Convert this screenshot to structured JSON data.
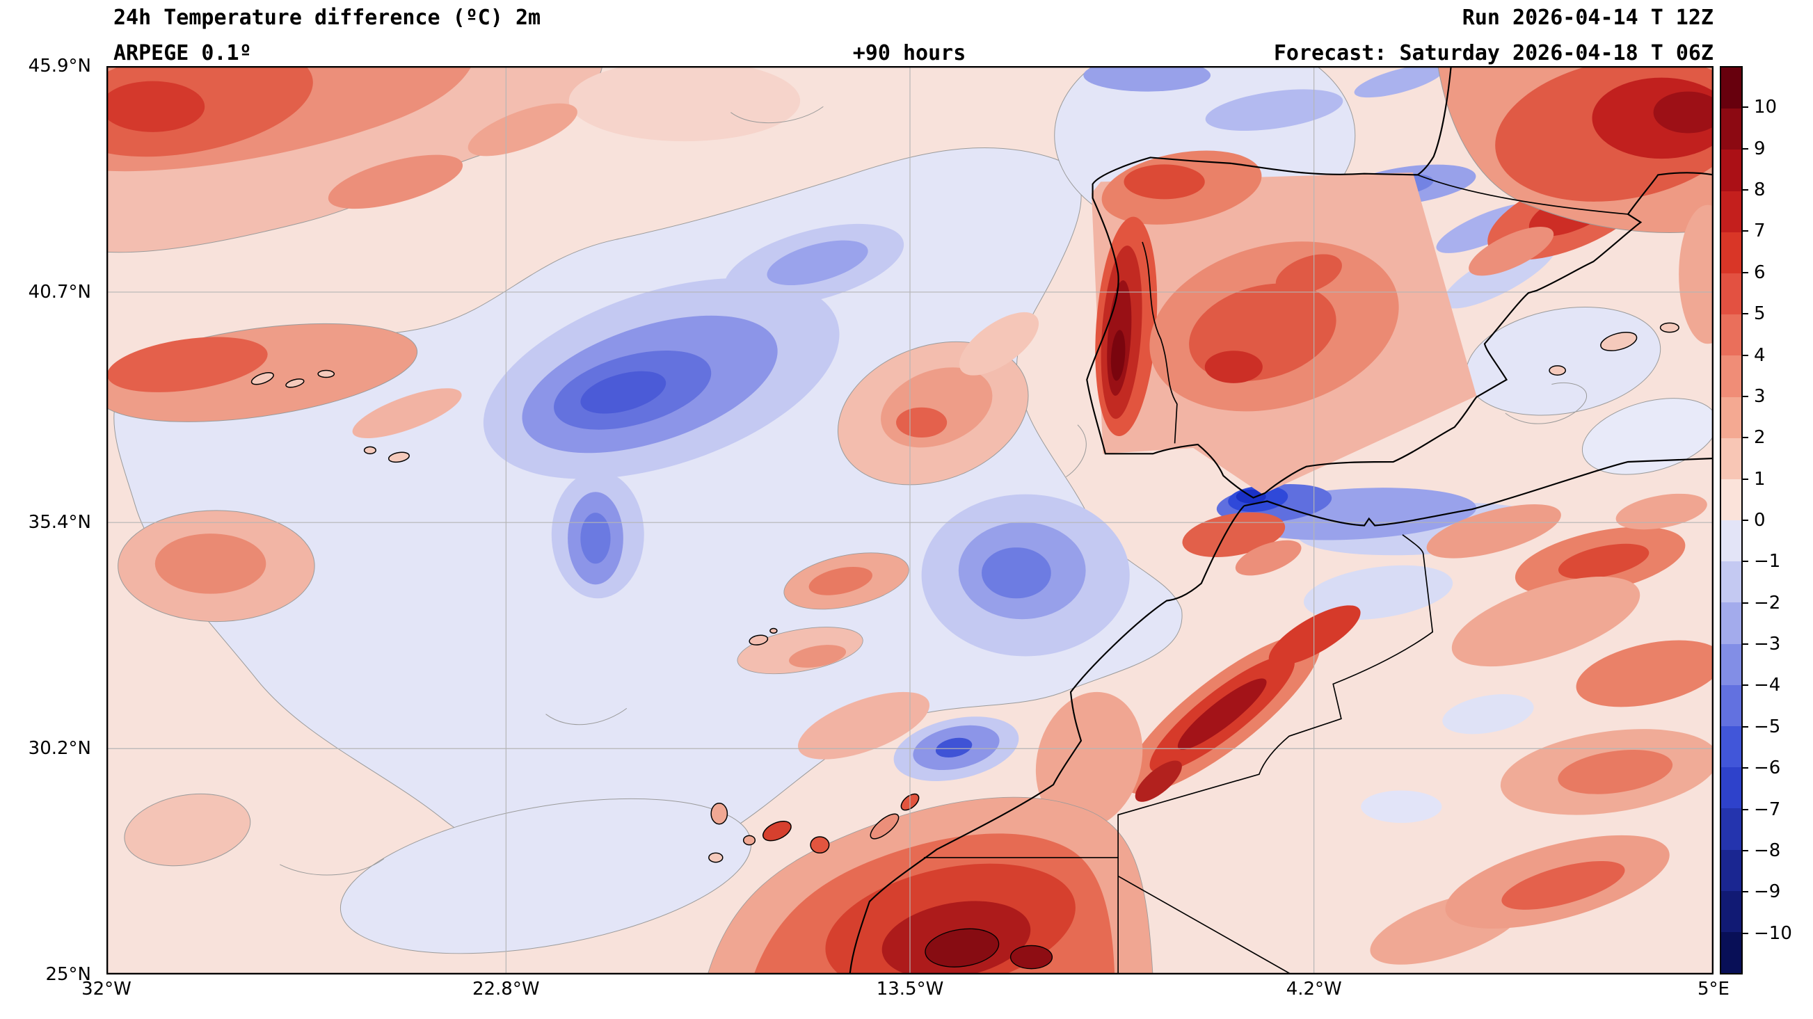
{
  "header": {
    "title": "24h Temperature difference (ºC) 2m",
    "model": "ARPEGE 0.1º",
    "lead_time": "+90 hours",
    "run": "Run 2026-04-14 T 12Z",
    "forecast": "Forecast: Saturday 2026-04-18 T 06Z"
  },
  "axes": {
    "y_ticks": [
      {
        "label": "45.9°N",
        "pos": 0
      },
      {
        "label": "40.7°N",
        "pos": 24.88
      },
      {
        "label": "35.4°N",
        "pos": 50.24
      },
      {
        "label": "30.2°N",
        "pos": 75.12
      },
      {
        "label": "25°N",
        "pos": 100
      }
    ],
    "x_ticks": [
      {
        "label": "32°W",
        "pos": 0
      },
      {
        "label": "22.8°W",
        "pos": 24.86
      },
      {
        "label": "13.5°W",
        "pos": 50.0
      },
      {
        "label": "4.2°W",
        "pos": 75.14
      },
      {
        "label": "5°E",
        "pos": 100
      }
    ]
  },
  "colorbar": {
    "tick_labels": [
      "10",
      "9",
      "8",
      "7",
      "6",
      "5",
      "4",
      "3",
      "2",
      "1",
      "0",
      "−1",
      "−2",
      "−3",
      "−4",
      "−5",
      "−6",
      "−7",
      "−8",
      "−9",
      "−10"
    ],
    "segment_colors_top_to_bottom": [
      "#67000d",
      "#8c0912",
      "#ab1016",
      "#c41f1d",
      "#d93627",
      "#e35141",
      "#ea6f5b",
      "#f08d77",
      "#f4a992",
      "#f8c6b5",
      "#fbe3da",
      "#e3e4f7",
      "#c4c9f2",
      "#a3abec",
      "#828ee6",
      "#6271e0",
      "#4156d9",
      "#2e42cb",
      "#2434ae",
      "#1a2691",
      "#111a74",
      "#080f57"
    ],
    "border_color": "#000000"
  },
  "chart_data": {
    "type": "heatmap",
    "title": "24h Temperature difference (ºC) 2m",
    "model": "ARPEGE 0.1º",
    "lead_time_hours": 90,
    "run": "2026-04-14 12Z",
    "valid": "Saturday 2026-04-18 06Z",
    "units": "ºC",
    "x_axis": {
      "kind": "longitude",
      "ticks": [
        "32°W",
        "22.8°W",
        "13.5°W",
        "4.2°W",
        "5°E"
      ]
    },
    "y_axis": {
      "kind": "latitude",
      "ticks": [
        "25°N",
        "30.2°N",
        "35.4°N",
        "40.7°N",
        "45.9°N"
      ]
    },
    "color_scale": {
      "min": -10,
      "max": 10,
      "step": 1,
      "positive": "red warming",
      "negative": "blue cooling"
    },
    "notable_features": [
      "Strong warming +4 to +9 along western Iberia / Portugal coast",
      "Strong warming +3 to +9 over Atlas mountains, southern Morocco and Western Sahara",
      "Strong warming +5 to +10 in far north-east corner (southern France) and north-west corner of domain",
      "Localized strong cooling −4 to −7 over the Alboran Sea near Gibraltar",
      "Cooling cells −2 to −5 in the mid-Atlantic near 20°W 37°N and 15°W 34°N",
      "Weak change −1 to +1 over most of the open Atlantic"
    ]
  }
}
